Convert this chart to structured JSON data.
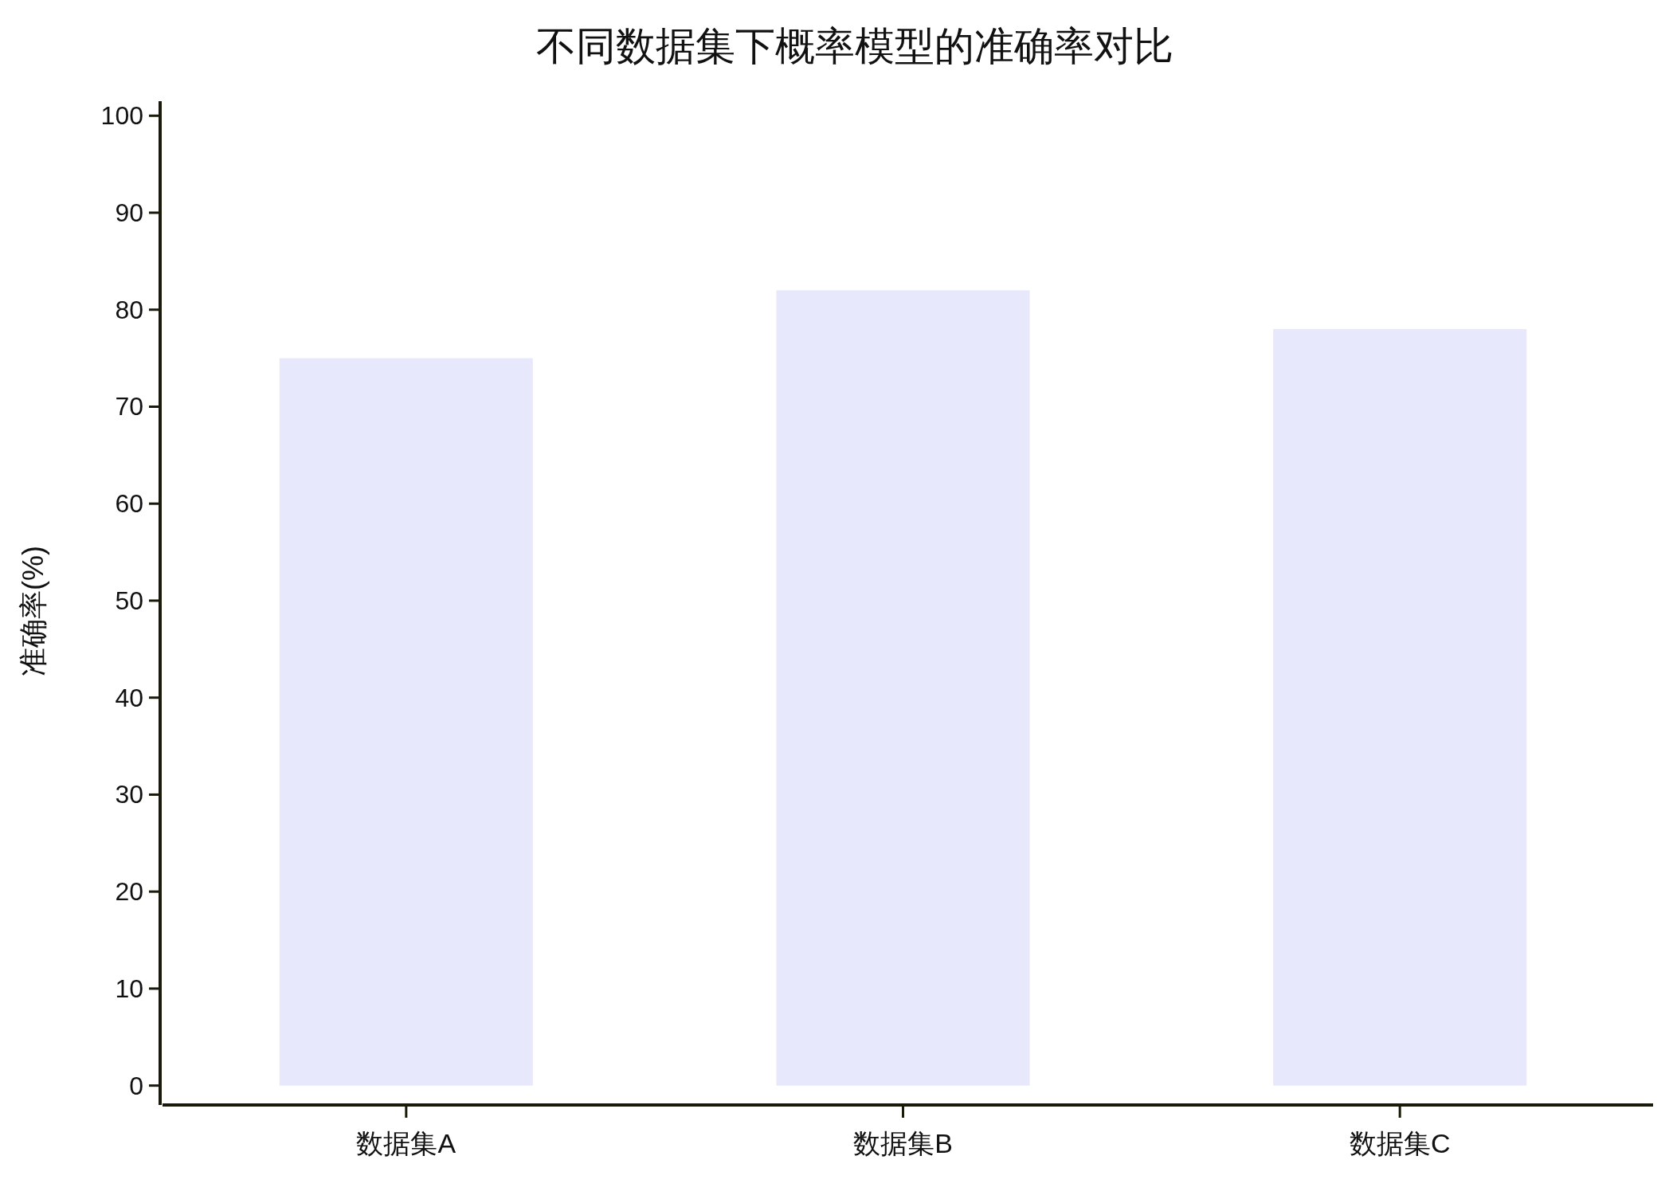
{
  "chart_data": {
    "type": "bar",
    "title": "不同数据集下概率模型的准确率对比",
    "ylabel": "准确率(%)",
    "categories": [
      "数据集A",
      "数据集B",
      "数据集C"
    ],
    "values": [
      75,
      82,
      78
    ],
    "color": "#e8e8fc",
    "ylim": [
      -2,
      101.5
    ],
    "yticks": [
      0,
      10,
      20,
      30,
      40,
      50,
      60,
      70,
      80,
      90,
      100
    ],
    "grid": false
  }
}
